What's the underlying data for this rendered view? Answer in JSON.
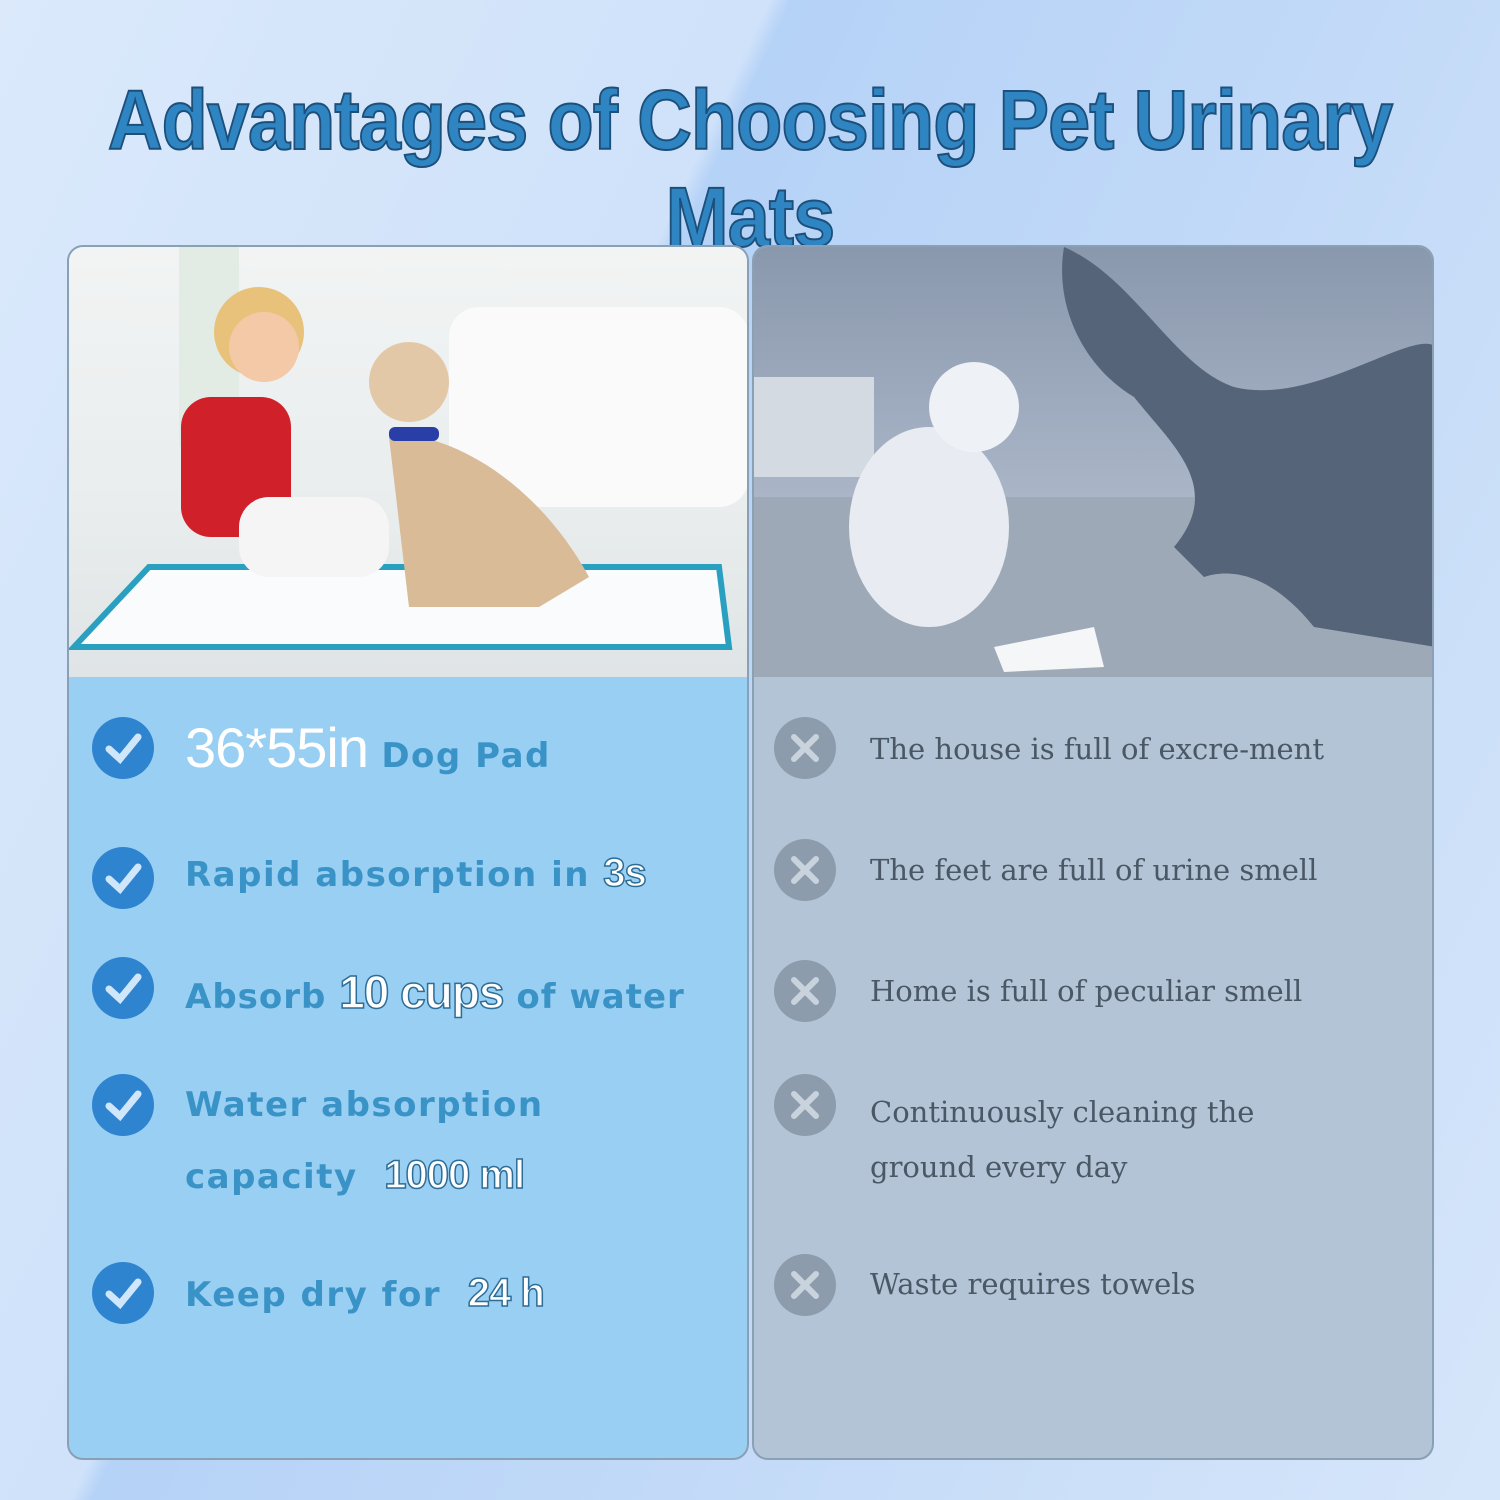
{
  "title": "Advantages of Choosing Pet Urinary Mats",
  "colors": {
    "accent": "#2f84c2",
    "left_panel": "#99cff3",
    "right_panel": "#b3c4d6",
    "check": "#2f84cf",
    "cross": "#8d9cac"
  },
  "left": {
    "photo": "child-with-dog-on-pad-photo",
    "items": [
      {
        "icon": "check-icon",
        "highlight": "36*55in",
        "text": "Dog Pad"
      },
      {
        "icon": "check-icon",
        "text": "Rapid absorption in",
        "highlight": "3s"
      },
      {
        "icon": "check-icon",
        "text": "Absorb",
        "highlight": "10 cups",
        "suffix": "of water"
      },
      {
        "icon": "check-icon",
        "text": "Water absorption",
        "line2": "capacity",
        "highlight": "1000 ml"
      },
      {
        "icon": "check-icon",
        "text": "Keep dry for",
        "highlight": "24 h"
      }
    ]
  },
  "right": {
    "photo": "woman-cleaning-floor-with-dog-photo",
    "items": [
      {
        "icon": "cross-icon",
        "text": "The house is full of excre-ment"
      },
      {
        "icon": "cross-icon",
        "text": "The feet are full of urine smell"
      },
      {
        "icon": "cross-icon",
        "text": "Home is full of peculiar smell"
      },
      {
        "icon": "cross-icon",
        "text": "Continuously cleaning the",
        "line2": "ground every day"
      },
      {
        "icon": "cross-icon",
        "text": "Waste requires towels"
      }
    ]
  }
}
